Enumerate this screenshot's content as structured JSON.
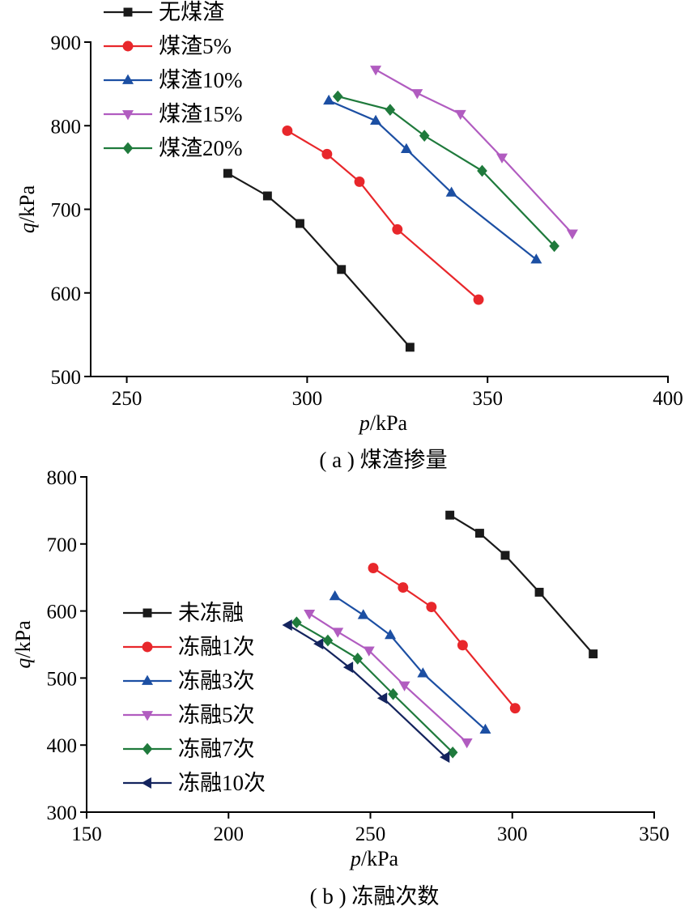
{
  "chart_data": [
    {
      "type": "line",
      "caption": "( a ) 煤渣掺量",
      "xlabel_var": "p",
      "xlabel_unit": "/kPa",
      "ylabel_var": "q",
      "ylabel_unit": "/kPa",
      "xlim": [
        240,
        400
      ],
      "ylim": [
        500,
        900
      ],
      "xticks": [
        250,
        300,
        350,
        400
      ],
      "yticks": [
        500,
        600,
        700,
        800,
        900
      ],
      "legend_position": "top-left",
      "series": [
        {
          "name": "无煤渣",
          "color": "#1a1a1a",
          "marker": "square",
          "x": [
            278,
            289,
            298,
            309.5,
            328.5
          ],
          "y": [
            743,
            716,
            683,
            628,
            535
          ]
        },
        {
          "name": "煤渣5%",
          "color": "#e8272b",
          "marker": "circle",
          "x": [
            294.5,
            305.5,
            314.5,
            325,
            347.5
          ],
          "y": [
            794,
            766,
            733,
            676,
            592
          ]
        },
        {
          "name": "煤渣10%",
          "color": "#1c4fa3",
          "marker": "triangle-up",
          "x": [
            306,
            319,
            327.5,
            340,
            363.5
          ],
          "y": [
            830,
            806,
            772,
            720,
            640
          ]
        },
        {
          "name": "煤渣15%",
          "color": "#b15cc0",
          "marker": "triangle-down",
          "x": [
            319,
            330.5,
            342.5,
            354,
            373.5
          ],
          "y": [
            867,
            839,
            814,
            762,
            671
          ]
        },
        {
          "name": "煤渣20%",
          "color": "#1f7a3c",
          "marker": "diamond",
          "x": [
            308.5,
            323,
            332.5,
            348.5,
            368.5
          ],
          "y": [
            835,
            819,
            788,
            746,
            656
          ]
        }
      ]
    },
    {
      "type": "line",
      "caption": "( b ) 冻融次数",
      "xlabel_var": "p",
      "xlabel_unit": "/kPa",
      "ylabel_var": "q",
      "ylabel_unit": "/kPa",
      "xlim": [
        150,
        350
      ],
      "ylim": [
        300,
        800
      ],
      "xticks": [
        150,
        200,
        250,
        300,
        350
      ],
      "yticks": [
        300,
        400,
        500,
        600,
        700,
        800
      ],
      "legend_position": "left",
      "series": [
        {
          "name": "未冻融",
          "color": "#1a1a1a",
          "marker": "square",
          "x": [
            278,
            288.5,
            297.5,
            309.5,
            328.5
          ],
          "y": [
            743,
            716,
            683,
            628,
            536
          ]
        },
        {
          "name": "冻融1次",
          "color": "#e8272b",
          "marker": "circle",
          "x": [
            251,
            261.5,
            271.5,
            282.5,
            301
          ],
          "y": [
            664,
            635,
            606,
            549,
            455
          ]
        },
        {
          "name": "冻融3次",
          "color": "#1c4fa3",
          "marker": "triangle-up",
          "x": [
            237.5,
            247.5,
            257,
            268.5,
            290.5
          ],
          "y": [
            622,
            594,
            564,
            507,
            423
          ]
        },
        {
          "name": "冻融5次",
          "color": "#b15cc0",
          "marker": "triangle-down",
          "x": [
            228.5,
            238.5,
            249.5,
            262,
            284
          ],
          "y": [
            596,
            569,
            541,
            489,
            404
          ]
        },
        {
          "name": "冻融7次",
          "color": "#1f7a3c",
          "marker": "diamond",
          "x": [
            224,
            235,
            245.5,
            258,
            279
          ],
          "y": [
            583,
            556,
            529,
            476,
            389
          ]
        },
        {
          "name": "冻融10次",
          "color": "#14245e",
          "marker": "triangle-left",
          "x": [
            221,
            232,
            242.5,
            254.5,
            276.5
          ],
          "y": [
            579,
            551,
            516,
            470,
            382
          ]
        }
      ]
    }
  ]
}
